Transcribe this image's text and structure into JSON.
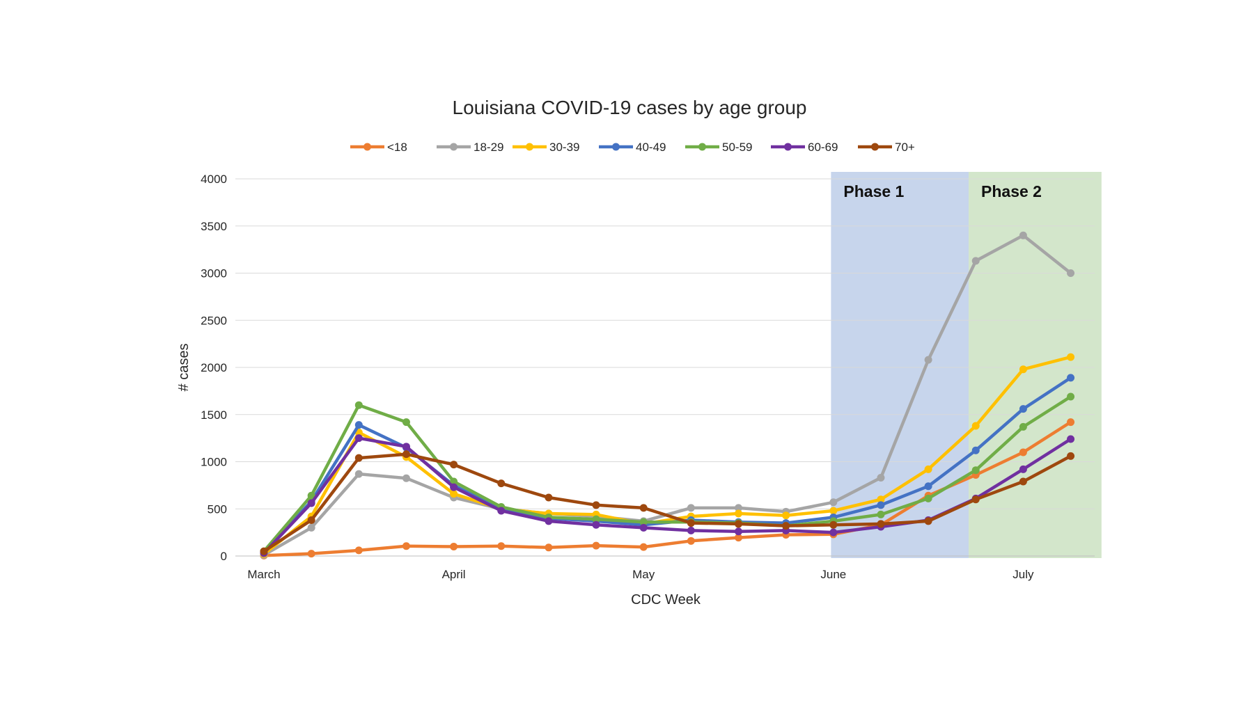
{
  "chart_data": {
    "type": "line",
    "title": "Louisiana COVID-19 cases by age group",
    "xlabel": "CDC Week",
    "ylabel": "# cases",
    "ylim": [
      0,
      4000
    ],
    "yticks": [
      0,
      500,
      1000,
      1500,
      2000,
      2500,
      3000,
      3500,
      4000
    ],
    "x_tick_labels": [
      {
        "label": "March",
        "week_index": 0
      },
      {
        "label": "April",
        "week_index": 4
      },
      {
        "label": "May",
        "week_index": 8
      },
      {
        "label": "June",
        "week_index": 12
      },
      {
        "label": "July",
        "week_index": 16
      }
    ],
    "num_weeks": 18,
    "grid": true,
    "legend_position": "top",
    "phases": [
      {
        "label": "Phase 1",
        "start_week": 11.95,
        "end_week": 14.85,
        "color": "#c7d5ec"
      },
      {
        "label": "Phase 2",
        "start_week": 14.85,
        "end_week": 17.65,
        "color": "#d3e6cb"
      }
    ],
    "series": [
      {
        "name": "<18",
        "color": "#ED7D31",
        "values": [
          5,
          25,
          60,
          105,
          100,
          105,
          90,
          110,
          95,
          160,
          195,
          225,
          230,
          330,
          640,
          860,
          1100,
          1420
        ]
      },
      {
        "name": "18-29",
        "color": "#A5A5A5",
        "values": [
          10,
          300,
          870,
          825,
          620,
          500,
          450,
          420,
          370,
          510,
          510,
          470,
          570,
          830,
          2080,
          3130,
          3400,
          3000
        ]
      },
      {
        "name": "30-39",
        "color": "#FFC000",
        "values": [
          20,
          420,
          1310,
          1050,
          660,
          500,
          450,
          440,
          340,
          420,
          450,
          430,
          480,
          600,
          920,
          1380,
          1980,
          2110
        ]
      },
      {
        "name": "40-49",
        "color": "#4472C4",
        "values": [
          40,
          580,
          1390,
          1150,
          750,
          490,
          400,
          370,
          330,
          380,
          360,
          350,
          410,
          540,
          740,
          1120,
          1560,
          1890
        ]
      },
      {
        "name": "50-59",
        "color": "#70AD47",
        "values": [
          50,
          640,
          1600,
          1420,
          790,
          520,
          410,
          390,
          360,
          360,
          350,
          320,
          370,
          440,
          610,
          910,
          1370,
          1690
        ]
      },
      {
        "name": "60-69",
        "color": "#7030A0",
        "values": [
          30,
          560,
          1250,
          1160,
          730,
          480,
          370,
          330,
          300,
          270,
          260,
          270,
          250,
          310,
          380,
          610,
          920,
          1240
        ]
      },
      {
        "name": "70+",
        "color": "#9E480E",
        "values": [
          50,
          380,
          1040,
          1080,
          970,
          770,
          620,
          540,
          510,
          350,
          340,
          320,
          330,
          340,
          370,
          600,
          790,
          1060
        ]
      }
    ]
  }
}
